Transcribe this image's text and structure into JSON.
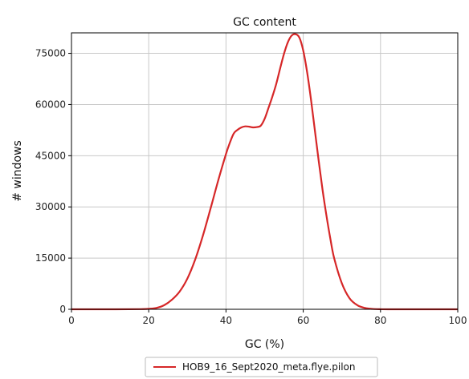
{
  "chart_data": {
    "type": "line",
    "title": "GC content",
    "xlabel": "GC (%)",
    "ylabel": "# windows",
    "xlim": [
      0,
      100
    ],
    "ylim": [
      0,
      81000
    ],
    "xticks": [
      0,
      20,
      40,
      60,
      80,
      100
    ],
    "yticks": [
      0,
      15000,
      30000,
      45000,
      60000,
      75000
    ],
    "grid": true,
    "legend_position": "bottom-center",
    "series": [
      {
        "name": "HOB9_16_Sept2020_meta.flye.pilon",
        "color": "#d62728",
        "x": [
          0,
          10,
          18,
          20,
          22,
          24,
          26,
          28,
          30,
          32,
          34,
          36,
          38,
          40,
          41,
          42,
          43,
          44,
          45,
          46,
          47,
          48,
          49,
          50,
          51,
          52,
          53,
          54,
          55,
          56,
          57,
          58,
          59,
          60,
          61,
          62,
          63,
          64,
          65,
          66,
          67,
          68,
          70,
          72,
          74,
          76,
          78,
          80,
          82,
          90,
          100
        ],
        "y": [
          0,
          0,
          50,
          150,
          400,
          1200,
          2800,
          5200,
          9000,
          14500,
          21500,
          29500,
          37800,
          45500,
          48800,
          51500,
          52600,
          53300,
          53600,
          53500,
          53300,
          53400,
          53800,
          55800,
          59000,
          62300,
          66000,
          70500,
          74800,
          78200,
          80200,
          80600,
          79600,
          75800,
          69500,
          61500,
          52500,
          43500,
          35000,
          27500,
          20800,
          15000,
          7600,
          3200,
          1200,
          380,
          100,
          20,
          0,
          0,
          0
        ]
      }
    ]
  }
}
